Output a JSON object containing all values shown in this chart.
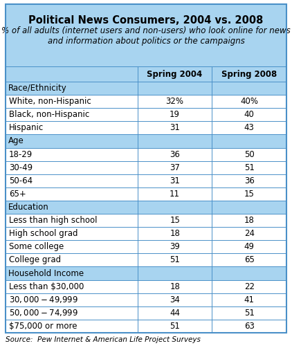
{
  "title": "Political News Consumers, 2004 vs. 2008",
  "subtitle": "% of all adults (internet users and non-users) who look online for news\nand information about politics or the campaigns",
  "col_headers": [
    "",
    "Spring 2004",
    "Spring 2008"
  ],
  "sections": [
    {
      "label": "Race/Ethnicity",
      "rows": [
        [
          "White, non-Hispanic",
          "32%",
          "40%"
        ],
        [
          "Black, non-Hispanic",
          "19",
          "40"
        ],
        [
          "Hispanic",
          "31",
          "43"
        ]
      ]
    },
    {
      "label": "Age",
      "rows": [
        [
          "18-29",
          "36",
          "50"
        ],
        [
          "30-49",
          "37",
          "51"
        ],
        [
          "50-64",
          "31",
          "36"
        ],
        [
          "65+",
          "11",
          "15"
        ]
      ]
    },
    {
      "label": "Education",
      "rows": [
        [
          "Less than high school",
          "15",
          "18"
        ],
        [
          "High school grad",
          "18",
          "24"
        ],
        [
          "Some college",
          "39",
          "49"
        ],
        [
          "College grad",
          "51",
          "65"
        ]
      ]
    },
    {
      "label": "Household Income",
      "rows": [
        [
          "Less than $30,000",
          "18",
          "22"
        ],
        [
          "$30,000-$49,999",
          "34",
          "41"
        ],
        [
          "$50,000-$74,999",
          "44",
          "51"
        ],
        [
          "$75,000 or more",
          "51",
          "63"
        ]
      ]
    }
  ],
  "source": "Source:  Pew Internet & American Life Project Surveys",
  "header_bg": "#a8d4f0",
  "section_bg": "#a8d4f0",
  "row_bg": "#ffffff",
  "border_color": "#4a90c8",
  "outer_border": "#4a90c8",
  "title_fontsize": 10.5,
  "subtitle_fontsize": 8.5,
  "col_header_fontsize": 8.5,
  "section_fontsize": 8.5,
  "data_fontsize": 8.5,
  "source_fontsize": 7.5
}
